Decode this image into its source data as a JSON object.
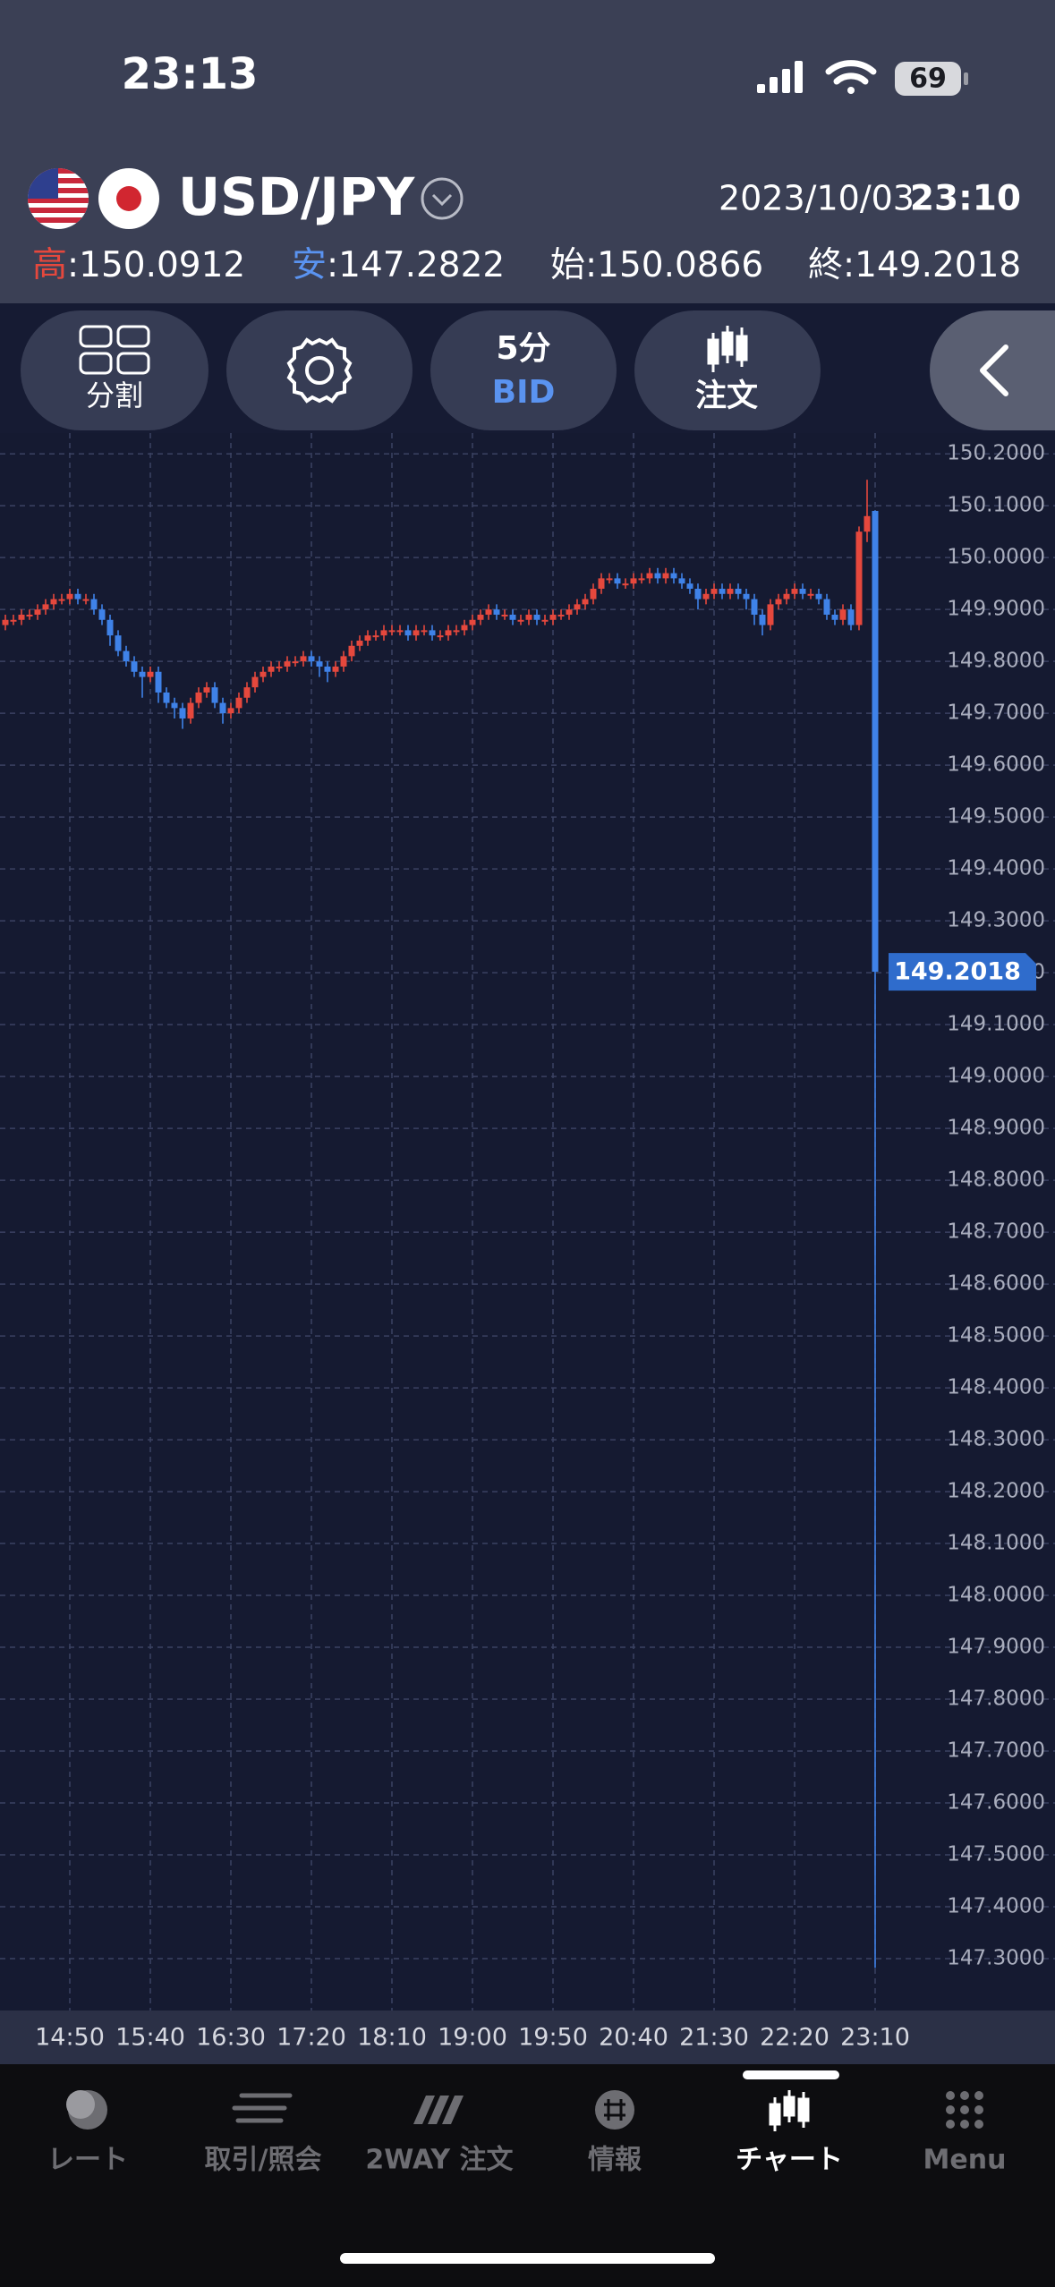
{
  "status_bar": {
    "time": "23:13",
    "battery": "69"
  },
  "header": {
    "pair": "USD/JPY",
    "date": "2023/10/03",
    "time": "23:10",
    "stats": [
      {
        "label": "高",
        "value": ":150.0912",
        "color": "#e5483d"
      },
      {
        "label": "安",
        "value": ":147.2822",
        "color": "#5a93f0"
      },
      {
        "label": "始",
        "value": ":150.0866",
        "color": "#ffffff"
      },
      {
        "label": "終",
        "value": ":149.2018",
        "color": "#ffffff"
      }
    ]
  },
  "toolbar": {
    "split": "分割",
    "interval": "5分",
    "price_type": "BID",
    "order": "注文"
  },
  "chart": {
    "type": "candlestick",
    "categories": [
      null,
      null,
      null,
      null,
      null,
      null,
      null,
      null,
      "14:50",
      null,
      null,
      null,
      null,
      null,
      null,
      null,
      null,
      null,
      "15:40",
      null,
      null,
      null,
      null,
      null,
      null,
      null,
      null,
      null,
      "16:30",
      null,
      null,
      null,
      null,
      null,
      null,
      null,
      null,
      null,
      "17:20",
      null,
      null,
      null,
      null,
      null,
      null,
      null,
      null,
      null,
      "18:10",
      null,
      null,
      null,
      null,
      null,
      null,
      null,
      null,
      null,
      "19:00",
      null,
      null,
      null,
      null,
      null,
      null,
      null,
      null,
      null,
      "19:50",
      null,
      null,
      null,
      null,
      null,
      null,
      null,
      null,
      null,
      "20:40",
      null,
      null,
      null,
      null,
      null,
      null,
      null,
      null,
      null,
      "21:30",
      null,
      null,
      null,
      null,
      null,
      null,
      null,
      null,
      null,
      "22:20",
      null,
      null,
      null,
      null,
      null,
      null,
      null,
      null,
      null,
      "23:10"
    ],
    "candles": [
      [
        149.87,
        149.89,
        149.86,
        149.88
      ],
      [
        149.88,
        149.89,
        149.87,
        149.88
      ],
      [
        149.88,
        149.9,
        149.87,
        149.89
      ],
      [
        149.89,
        149.9,
        149.88,
        149.89
      ],
      [
        149.89,
        149.91,
        149.88,
        149.9
      ],
      [
        149.9,
        149.92,
        149.89,
        149.91
      ],
      [
        149.91,
        149.93,
        149.9,
        149.92
      ],
      [
        149.92,
        149.93,
        149.91,
        149.92
      ],
      [
        149.92,
        149.94,
        149.91,
        149.93
      ],
      [
        149.93,
        149.94,
        149.91,
        149.92
      ],
      [
        149.92,
        149.93,
        149.91,
        149.92
      ],
      [
        149.92,
        149.93,
        149.89,
        149.9
      ],
      [
        149.9,
        149.91,
        149.87,
        149.88
      ],
      [
        149.88,
        149.89,
        149.83,
        149.85
      ],
      [
        149.85,
        149.86,
        149.81,
        149.82
      ],
      [
        149.82,
        149.83,
        149.79,
        149.8
      ],
      [
        149.8,
        149.81,
        149.77,
        149.78
      ],
      [
        149.78,
        149.79,
        149.73,
        149.77
      ],
      [
        149.77,
        149.79,
        149.76,
        149.78
      ],
      [
        149.78,
        149.79,
        149.72,
        149.74
      ],
      [
        149.74,
        149.75,
        149.71,
        149.72
      ],
      [
        149.72,
        149.73,
        149.69,
        149.71
      ],
      [
        149.71,
        149.72,
        149.67,
        149.69
      ],
      [
        149.69,
        149.73,
        149.68,
        149.72
      ],
      [
        149.72,
        149.75,
        149.71,
        149.74
      ],
      [
        149.74,
        149.76,
        149.73,
        149.75
      ],
      [
        149.75,
        149.76,
        149.71,
        149.72
      ],
      [
        149.72,
        149.73,
        149.68,
        149.7
      ],
      [
        149.7,
        149.72,
        149.69,
        149.71
      ],
      [
        149.71,
        149.74,
        149.7,
        149.73
      ],
      [
        149.73,
        149.76,
        149.72,
        149.75
      ],
      [
        149.75,
        149.78,
        149.74,
        149.77
      ],
      [
        149.77,
        149.79,
        149.76,
        149.78
      ],
      [
        149.78,
        149.8,
        149.77,
        149.79
      ],
      [
        149.79,
        149.8,
        149.78,
        149.79
      ],
      [
        149.79,
        149.81,
        149.78,
        149.8
      ],
      [
        149.8,
        149.81,
        149.79,
        149.8
      ],
      [
        149.8,
        149.82,
        149.79,
        149.81
      ],
      [
        149.81,
        149.82,
        149.79,
        149.8
      ],
      [
        149.8,
        149.81,
        149.77,
        149.79
      ],
      [
        149.79,
        149.8,
        149.76,
        149.78
      ],
      [
        149.78,
        149.8,
        149.77,
        149.79
      ],
      [
        149.79,
        149.82,
        149.78,
        149.81
      ],
      [
        149.81,
        149.84,
        149.8,
        149.83
      ],
      [
        149.83,
        149.85,
        149.82,
        149.84
      ],
      [
        149.84,
        149.86,
        149.83,
        149.85
      ],
      [
        149.85,
        149.86,
        149.84,
        149.85
      ],
      [
        149.85,
        149.87,
        149.84,
        149.86
      ],
      [
        149.86,
        149.87,
        149.85,
        149.86
      ],
      [
        149.86,
        149.87,
        149.85,
        149.86
      ],
      [
        149.86,
        149.87,
        149.84,
        149.85
      ],
      [
        149.85,
        149.87,
        149.84,
        149.86
      ],
      [
        149.86,
        149.87,
        149.85,
        149.86
      ],
      [
        149.86,
        149.87,
        149.84,
        149.85
      ],
      [
        149.85,
        149.86,
        149.84,
        149.85
      ],
      [
        149.85,
        149.87,
        149.84,
        149.86
      ],
      [
        149.86,
        149.87,
        149.85,
        149.86
      ],
      [
        149.86,
        149.88,
        149.85,
        149.87
      ],
      [
        149.87,
        149.89,
        149.86,
        149.88
      ],
      [
        149.88,
        149.9,
        149.87,
        149.89
      ],
      [
        149.89,
        149.91,
        149.88,
        149.9
      ],
      [
        149.9,
        149.91,
        149.88,
        149.89
      ],
      [
        149.89,
        149.9,
        149.88,
        149.89
      ],
      [
        149.89,
        149.9,
        149.87,
        149.88
      ],
      [
        149.88,
        149.89,
        149.87,
        149.88
      ],
      [
        149.88,
        149.9,
        149.87,
        149.89
      ],
      [
        149.89,
        149.9,
        149.87,
        149.88
      ],
      [
        149.88,
        149.89,
        149.87,
        149.88
      ],
      [
        149.88,
        149.9,
        149.87,
        149.89
      ],
      [
        149.89,
        149.9,
        149.88,
        149.89
      ],
      [
        149.89,
        149.91,
        149.88,
        149.9
      ],
      [
        149.9,
        149.92,
        149.89,
        149.91
      ],
      [
        149.91,
        149.93,
        149.9,
        149.92
      ],
      [
        149.92,
        149.95,
        149.91,
        149.94
      ],
      [
        149.94,
        149.97,
        149.93,
        149.96
      ],
      [
        149.96,
        149.97,
        149.95,
        149.96
      ],
      [
        149.96,
        149.97,
        149.94,
        149.95
      ],
      [
        149.95,
        149.96,
        149.94,
        149.95
      ],
      [
        149.95,
        149.97,
        149.94,
        149.96
      ],
      [
        149.96,
        149.97,
        149.95,
        149.96
      ],
      [
        149.96,
        149.98,
        149.95,
        149.97
      ],
      [
        149.97,
        149.98,
        149.95,
        149.96
      ],
      [
        149.96,
        149.98,
        149.95,
        149.97
      ],
      [
        149.97,
        149.98,
        149.95,
        149.96
      ],
      [
        149.96,
        149.97,
        149.94,
        149.95
      ],
      [
        149.95,
        149.96,
        149.93,
        149.94
      ],
      [
        149.94,
        149.95,
        149.9,
        149.92
      ],
      [
        149.92,
        149.94,
        149.91,
        149.93
      ],
      [
        149.93,
        149.95,
        149.92,
        149.94
      ],
      [
        149.94,
        149.95,
        149.92,
        149.93
      ],
      [
        149.93,
        149.95,
        149.92,
        149.94
      ],
      [
        149.94,
        149.95,
        149.92,
        149.93
      ],
      [
        149.93,
        149.94,
        149.9,
        149.92
      ],
      [
        149.92,
        149.93,
        149.87,
        149.89
      ],
      [
        149.89,
        149.9,
        149.85,
        149.87
      ],
      [
        149.87,
        149.92,
        149.86,
        149.91
      ],
      [
        149.91,
        149.93,
        149.9,
        149.92
      ],
      [
        149.92,
        149.94,
        149.91,
        149.93
      ],
      [
        149.93,
        149.95,
        149.92,
        149.94
      ],
      [
        149.94,
        149.95,
        149.92,
        149.93
      ],
      [
        149.93,
        149.94,
        149.92,
        149.93
      ],
      [
        149.93,
        149.94,
        149.91,
        149.92
      ],
      [
        149.92,
        149.93,
        149.88,
        149.89
      ],
      [
        149.89,
        149.9,
        149.87,
        149.88
      ],
      [
        149.88,
        149.91,
        149.87,
        149.9
      ],
      [
        149.9,
        149.91,
        149.86,
        149.87
      ],
      [
        149.87,
        150.06,
        149.86,
        150.05
      ],
      [
        150.05,
        150.15,
        150.03,
        150.08
      ],
      [
        150.09,
        150.0912,
        147.2822,
        149.2018
      ]
    ],
    "ylim": [
      147.2,
      150.24
    ],
    "yticks": [
      {
        "value": 150.2,
        "label": "150.2000"
      },
      {
        "value": 150.1,
        "label": "150.1000"
      },
      {
        "value": 150,
        "label": "150.0000"
      },
      {
        "value": 149.9,
        "label": "149.9000"
      },
      {
        "value": 149.8,
        "label": "149.8000"
      },
      {
        "value": 149.7,
        "label": "149.7000"
      },
      {
        "value": 149.6,
        "label": "149.6000"
      },
      {
        "value": 149.5,
        "label": "149.5000"
      },
      {
        "value": 149.4,
        "label": "149.4000"
      },
      {
        "value": 149.3,
        "label": "149.3000"
      },
      {
        "value": 149.2,
        "label": "149.2000"
      },
      {
        "value": 149.1,
        "label": "149.1000"
      },
      {
        "value": 149,
        "label": "149.0000"
      },
      {
        "value": 148.9,
        "label": "148.9000"
      },
      {
        "value": 148.8,
        "label": "148.8000"
      },
      {
        "value": 148.7,
        "label": "148.7000"
      },
      {
        "value": 148.6,
        "label": "148.6000"
      },
      {
        "value": 148.5,
        "label": "148.5000"
      },
      {
        "value": 148.4,
        "label": "148.4000"
      },
      {
        "value": 148.3,
        "label": "148.3000"
      },
      {
        "value": 148.2,
        "label": "148.2000"
      },
      {
        "value": 148.1,
        "label": "148.1000"
      },
      {
        "value": 148,
        "label": "148.0000"
      },
      {
        "value": 147.9,
        "label": "147.9000"
      },
      {
        "value": 147.8,
        "label": "147.8000"
      },
      {
        "value": 147.7,
        "label": "147.7000"
      },
      {
        "value": 147.6,
        "label": "147.6000"
      },
      {
        "value": 147.5,
        "label": "147.5000"
      },
      {
        "value": 147.4,
        "label": "147.4000"
      },
      {
        "value": 147.3,
        "label": "147.3000"
      }
    ],
    "grid": true,
    "up_color": "#e5483d",
    "down_color": "#3f82e8"
  },
  "tab_bar": {
    "tabs": [
      "レート",
      "取引/照会",
      "2WAY 注文",
      "情報",
      "チャート",
      "Menu"
    ],
    "active": 4
  }
}
